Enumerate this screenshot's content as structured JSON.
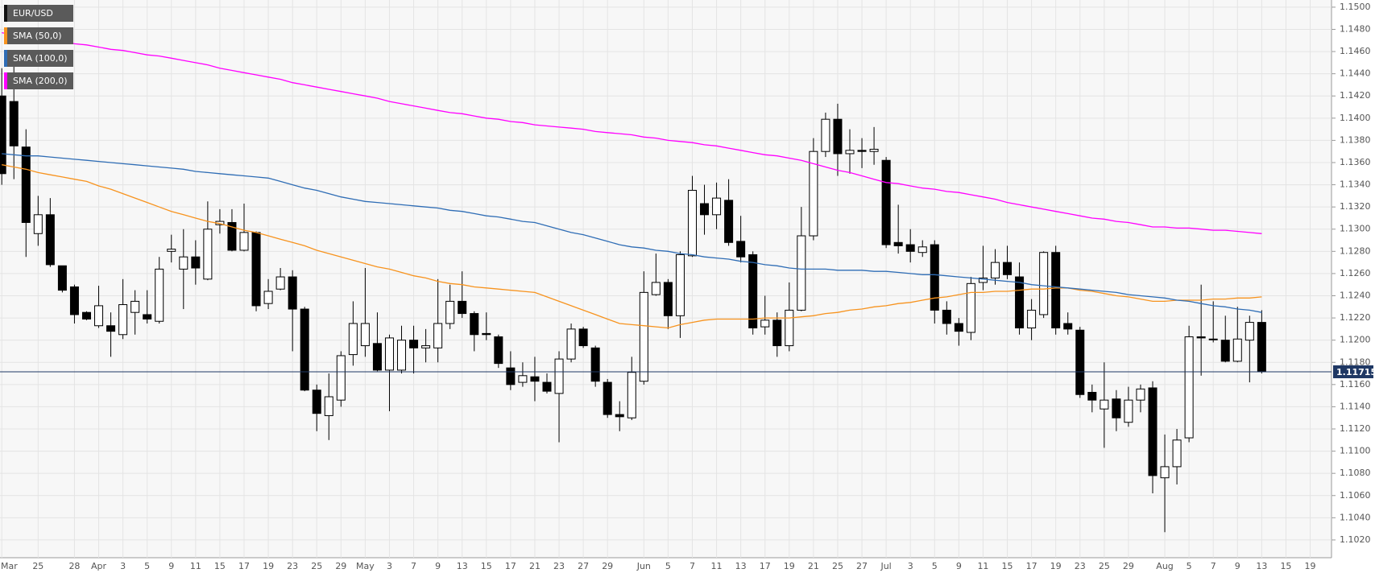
{
  "chart_data": {
    "type": "candlestick",
    "categories": [
      "Mar",
      null,
      null,
      "25",
      null,
      null,
      "28",
      null,
      "Apr",
      null,
      "3",
      null,
      "5",
      null,
      "9",
      null,
      "11",
      null,
      "15",
      null,
      "17",
      null,
      "19",
      null,
      "23",
      null,
      "25",
      null,
      "29",
      null,
      "May",
      null,
      "3",
      null,
      "7",
      null,
      "9",
      null,
      "13",
      null,
      "15",
      null,
      "17",
      null,
      "21",
      null,
      "23",
      null,
      "27",
      null,
      "29",
      null,
      null,
      "Jun",
      null,
      "5",
      null,
      "7",
      null,
      "11",
      null,
      "13",
      null,
      "17",
      null,
      "19",
      null,
      "21",
      null,
      "25",
      null,
      "27",
      null,
      "Jul",
      null,
      "3",
      null,
      "5",
      null,
      "9",
      null,
      "11",
      null,
      "15",
      null,
      "17",
      null,
      "19",
      null,
      "23",
      null,
      "25",
      null,
      "29",
      null,
      null,
      "Aug",
      null,
      "5",
      null,
      "7",
      null,
      "9",
      null,
      "13",
      null,
      "15",
      null,
      "19"
    ],
    "series": [
      {
        "name": "EUR/USD",
        "type": "candlestick",
        "color": "#000000",
        "up_color": "#ffffff",
        "down_color": "#000000",
        "open": [
          1.142,
          1.1415,
          1.1374,
          1.1296,
          1.1313,
          1.1267,
          1.1248,
          1.1225,
          1.1213,
          1.1213,
          1.1205,
          1.1225,
          1.1223,
          1.1217,
          1.128,
          1.1264,
          1.1275,
          1.1255,
          1.1304,
          1.1306,
          1.1281,
          1.1297,
          1.1233,
          1.1246,
          1.1257,
          1.1228,
          1.1155,
          1.1132,
          1.1146,
          1.1187,
          1.1195,
          1.1197,
          1.1173,
          1.1173,
          1.12,
          1.1193,
          1.1193,
          1.1215,
          1.1235,
          1.1224,
          1.1206,
          1.1203,
          1.1175,
          1.1162,
          1.1167,
          1.1162,
          1.1152,
          1.1183,
          1.121,
          1.1193,
          1.1162,
          1.1133,
          1.113,
          1.1163,
          1.1241,
          1.1252,
          1.1222,
          1.1276,
          1.1323,
          1.1313,
          1.1326,
          1.1289,
          1.1277,
          1.1212,
          1.1218,
          1.1195,
          1.1227,
          1.1294,
          1.137,
          1.1399,
          1.1368,
          1.1371,
          1.137,
          1.1362,
          1.1288,
          1.1286,
          1.1279,
          1.1286,
          1.1227,
          1.1215,
          1.1207,
          1.1252,
          1.1256,
          1.127,
          1.1257,
          1.1211,
          1.1223,
          1.1279,
          1.1215,
          1.1209,
          1.1153,
          1.1138,
          1.1147,
          1.1126,
          1.1146,
          1.1157,
          1.1076,
          1.1086,
          1.1112,
          1.1203,
          1.1201,
          1.12,
          1.1181,
          1.12,
          1.1216,
          null,
          null,
          null,
          null
        ],
        "high": [
          1.1445,
          1.145,
          1.139,
          1.133,
          1.1328,
          1.1267,
          1.125,
          1.1226,
          1.1249,
          1.1225,
          1.1255,
          1.1245,
          1.1245,
          1.1275,
          1.1295,
          1.13,
          1.129,
          1.1325,
          1.1318,
          1.1318,
          1.1323,
          1.1298,
          1.1255,
          1.1265,
          1.1263,
          1.123,
          1.116,
          1.117,
          1.119,
          1.1235,
          1.1265,
          1.1225,
          1.1205,
          1.1213,
          1.1213,
          1.121,
          1.1255,
          1.125,
          1.1262,
          1.1226,
          1.1225,
          1.1205,
          1.119,
          1.118,
          1.1185,
          1.117,
          1.119,
          1.1215,
          1.1212,
          1.1195,
          1.1165,
          1.1145,
          1.1185,
          1.1262,
          1.1278,
          1.1255,
          1.128,
          1.1348,
          1.134,
          1.1342,
          1.1345,
          1.1312,
          1.128,
          1.124,
          1.1225,
          1.1252,
          1.132,
          1.1382,
          1.1405,
          1.1413,
          1.139,
          1.1382,
          1.1392,
          1.1365,
          1.1322,
          1.13,
          1.129,
          1.129,
          1.1235,
          1.122,
          1.1257,
          1.1285,
          1.1282,
          1.1285,
          1.127,
          1.1237,
          1.128,
          1.1285,
          1.1225,
          1.1212,
          1.116,
          1.118,
          1.1155,
          1.1158,
          1.116,
          1.1163,
          1.1115,
          1.112,
          1.1213,
          1.125,
          1.1235,
          1.1222,
          1.123,
          1.1222,
          1.1227,
          null,
          null,
          null,
          null
        ],
        "low": [
          1.134,
          1.1345,
          1.1275,
          1.1285,
          1.1266,
          1.1243,
          1.1215,
          1.1218,
          1.1211,
          1.1185,
          1.1201,
          1.1205,
          1.1215,
          1.1215,
          1.127,
          1.1228,
          1.125,
          1.1254,
          1.1296,
          1.128,
          1.128,
          1.1226,
          1.1228,
          1.1245,
          1.119,
          1.1154,
          1.1118,
          1.111,
          1.114,
          1.1177,
          1.1185,
          1.1172,
          1.1136,
          1.117,
          1.117,
          1.118,
          1.118,
          1.121,
          1.122,
          1.119,
          1.12,
          1.1175,
          1.1155,
          1.1158,
          1.1145,
          1.1152,
          1.1108,
          1.118,
          1.1193,
          1.1158,
          1.113,
          1.1118,
          1.1128,
          1.116,
          1.124,
          1.121,
          1.1202,
          1.1275,
          1.1295,
          1.13,
          1.1285,
          1.127,
          1.1205,
          1.1205,
          1.1185,
          1.119,
          1.1226,
          1.129,
          1.1365,
          1.1348,
          1.135,
          1.1355,
          1.1358,
          1.1283,
          1.1278,
          1.127,
          1.1275,
          1.1215,
          1.1205,
          1.1195,
          1.12,
          1.1245,
          1.125,
          1.1255,
          1.1205,
          1.12,
          1.122,
          1.1205,
          1.1205,
          1.1148,
          1.1135,
          1.1103,
          1.1118,
          1.1122,
          1.1135,
          1.1062,
          1.1027,
          1.107,
          1.1108,
          1.1168,
          1.1198,
          1.118,
          1.118,
          1.1162,
          1.117,
          null,
          null,
          null,
          null
        ],
        "close": [
          1.135,
          1.1375,
          1.1306,
          1.1313,
          1.1268,
          1.1245,
          1.1223,
          1.1219,
          1.1231,
          1.1208,
          1.1232,
          1.1235,
          1.1219,
          1.1264,
          1.1282,
          1.1275,
          1.1265,
          1.13,
          1.1307,
          1.1281,
          1.1297,
          1.1231,
          1.1244,
          1.1257,
          1.1228,
          1.1155,
          1.1134,
          1.1149,
          1.1186,
          1.1215,
          1.1215,
          1.1173,
          1.1202,
          1.12,
          1.1193,
          1.1195,
          1.1215,
          1.1235,
          1.1224,
          1.1205,
          1.1205,
          1.1179,
          1.116,
          1.1168,
          1.1163,
          1.1154,
          1.1183,
          1.121,
          1.1195,
          1.1163,
          1.1133,
          1.1131,
          1.1171,
          1.1243,
          1.1252,
          1.1222,
          1.1277,
          1.1335,
          1.1313,
          1.1328,
          1.1288,
          1.1275,
          1.1211,
          1.1218,
          1.1195,
          1.1227,
          1.1294,
          1.137,
          1.1399,
          1.1368,
          1.1371,
          1.137,
          1.1372,
          1.1286,
          1.1285,
          1.128,
          1.1284,
          1.1227,
          1.1215,
          1.1208,
          1.1251,
          1.1256,
          1.127,
          1.1259,
          1.1211,
          1.1227,
          1.1279,
          1.1211,
          1.121,
          1.1151,
          1.1146,
          1.1146,
          1.113,
          1.1146,
          1.1156,
          1.1078,
          1.1086,
          1.111,
          1.1203,
          1.1202,
          1.1201,
          1.1181,
          1.1201,
          1.1216,
          1.11715,
          null,
          null,
          null,
          null
        ]
      },
      {
        "name": "SMA (50,0)",
        "type": "line",
        "color": "#f7931e",
        "values": [
          1.1358,
          1.1356,
          1.1354,
          1.1351,
          1.1349,
          1.1347,
          1.1345,
          1.1343,
          1.1339,
          1.1336,
          1.1332,
          1.1328,
          1.1324,
          1.132,
          1.1316,
          1.1313,
          1.131,
          1.1307,
          1.1305,
          1.1302,
          1.1299,
          1.1297,
          1.1294,
          1.1291,
          1.1288,
          1.1285,
          1.1281,
          1.1278,
          1.1275,
          1.1272,
          1.1269,
          1.1266,
          1.1264,
          1.1261,
          1.1258,
          1.1256,
          1.1253,
          1.1251,
          1.125,
          1.1248,
          1.1247,
          1.1246,
          1.1245,
          1.1244,
          1.1243,
          1.1239,
          1.1235,
          1.1231,
          1.1227,
          1.1223,
          1.1219,
          1.1215,
          1.1214,
          1.1213,
          1.1212,
          1.1211,
          1.1214,
          1.1216,
          1.1218,
          1.1219,
          1.1219,
          1.1219,
          1.1219,
          1.122,
          1.122,
          1.122,
          1.1221,
          1.1222,
          1.1224,
          1.1225,
          1.1227,
          1.1228,
          1.123,
          1.1231,
          1.1233,
          1.1234,
          1.1236,
          1.1238,
          1.1239,
          1.1241,
          1.1243,
          1.1243,
          1.1244,
          1.1244,
          1.1245,
          1.1246,
          1.1246,
          1.1247,
          1.1247,
          1.1245,
          1.1244,
          1.1242,
          1.124,
          1.1239,
          1.1237,
          1.1235,
          1.1235,
          1.1236,
          1.1236,
          1.1236,
          1.1237,
          1.1237,
          1.1238,
          1.1238,
          1.1239,
          null,
          null,
          null,
          null
        ]
      },
      {
        "name": "SMA (100,0)",
        "type": "line",
        "color": "#2f6db5",
        "values": [
          1.1368,
          1.1367,
          1.1366,
          1.1366,
          1.1365,
          1.1364,
          1.1363,
          1.1362,
          1.1361,
          1.136,
          1.1359,
          1.1358,
          1.1357,
          1.1356,
          1.1355,
          1.1354,
          1.1352,
          1.1351,
          1.135,
          1.1349,
          1.1348,
          1.1347,
          1.1346,
          1.1343,
          1.134,
          1.1337,
          1.1335,
          1.1332,
          1.1329,
          1.1327,
          1.1325,
          1.1324,
          1.1323,
          1.1322,
          1.1321,
          1.132,
          1.1319,
          1.1317,
          1.1316,
          1.1314,
          1.1312,
          1.1311,
          1.1309,
          1.1307,
          1.1306,
          1.1303,
          1.13,
          1.1297,
          1.1295,
          1.1292,
          1.1289,
          1.1286,
          1.1284,
          1.1283,
          1.1281,
          1.128,
          1.1278,
          1.1277,
          1.1275,
          1.1274,
          1.1273,
          1.1271,
          1.127,
          1.1268,
          1.1267,
          1.1265,
          1.1264,
          1.1264,
          1.1264,
          1.1263,
          1.1263,
          1.1263,
          1.1262,
          1.1262,
          1.1261,
          1.126,
          1.1259,
          1.1259,
          1.1258,
          1.1257,
          1.1256,
          1.1255,
          1.1254,
          1.1253,
          1.1252,
          1.125,
          1.1249,
          1.1248,
          1.1247,
          1.1246,
          1.1245,
          1.1244,
          1.1243,
          1.1241,
          1.124,
          1.1239,
          1.1238,
          1.1236,
          1.1235,
          1.1233,
          1.1231,
          1.123,
          1.1228,
          1.1227,
          1.1225,
          null,
          null,
          null,
          null
        ]
      },
      {
        "name": "SMA (200,0)",
        "type": "line",
        "color": "#ff00ff",
        "values": [
          1.1477,
          1.1475,
          1.1474,
          1.1472,
          1.147,
          1.1469,
          1.1467,
          1.1466,
          1.1464,
          1.1462,
          1.1461,
          1.1459,
          1.1457,
          1.1456,
          1.1454,
          1.1452,
          1.145,
          1.1448,
          1.1445,
          1.1443,
          1.1441,
          1.1439,
          1.1437,
          1.1435,
          1.1432,
          1.143,
          1.1428,
          1.1426,
          1.1424,
          1.1422,
          1.142,
          1.1418,
          1.1415,
          1.1413,
          1.1411,
          1.1409,
          1.1407,
          1.1405,
          1.1404,
          1.1402,
          1.14,
          1.1399,
          1.1397,
          1.1396,
          1.1394,
          1.1393,
          1.1392,
          1.1391,
          1.139,
          1.1388,
          1.1387,
          1.1386,
          1.1385,
          1.1383,
          1.1382,
          1.138,
          1.1379,
          1.1378,
          1.1376,
          1.1375,
          1.1373,
          1.1371,
          1.1369,
          1.1367,
          1.1366,
          1.1364,
          1.1362,
          1.1359,
          1.1356,
          1.1353,
          1.1351,
          1.1348,
          1.1345,
          1.1342,
          1.1341,
          1.1339,
          1.1337,
          1.1336,
          1.1334,
          1.1333,
          1.1331,
          1.1329,
          1.1327,
          1.1324,
          1.1322,
          1.132,
          1.1318,
          1.1316,
          1.1314,
          1.1312,
          1.131,
          1.1309,
          1.1307,
          1.1306,
          1.1304,
          1.1302,
          1.1302,
          1.1301,
          1.1301,
          1.13,
          1.1299,
          1.1299,
          1.1298,
          1.1297,
          1.1296,
          null,
          null,
          null,
          null
        ]
      }
    ],
    "last_price": 1.11715,
    "last_price_color": "#1f3864",
    "ylim": [
      1.1004,
      1.1505
    ],
    "yticks": [
      {
        "value": 1.102,
        "label": "1.1020"
      },
      {
        "value": 1.104,
        "label": "1.1040"
      },
      {
        "value": 1.106,
        "label": "1.1060"
      },
      {
        "value": 1.108,
        "label": "1.1080"
      },
      {
        "value": 1.11,
        "label": "1.1100"
      },
      {
        "value": 1.112,
        "label": "1.1120"
      },
      {
        "value": 1.114,
        "label": "1.1140"
      },
      {
        "value": 1.116,
        "label": "1.1160"
      },
      {
        "value": 1.118,
        "label": "1.1180"
      },
      {
        "value": 1.12,
        "label": "1.1200"
      },
      {
        "value": 1.122,
        "label": "1.1220"
      },
      {
        "value": 1.124,
        "label": "1.1240"
      },
      {
        "value": 1.126,
        "label": "1.1260"
      },
      {
        "value": 1.128,
        "label": "1.1280"
      },
      {
        "value": 1.13,
        "label": "1.1300"
      },
      {
        "value": 1.132,
        "label": "1.1320"
      },
      {
        "value": 1.134,
        "label": "1.1340"
      },
      {
        "value": 1.136,
        "label": "1.1360"
      },
      {
        "value": 1.138,
        "label": "1.1380"
      },
      {
        "value": 1.14,
        "label": "1.1400"
      },
      {
        "value": 1.142,
        "label": "1.1420"
      },
      {
        "value": 1.144,
        "label": "1.1440"
      },
      {
        "value": 1.146,
        "label": "1.1460"
      },
      {
        "value": 1.148,
        "label": "1.1480"
      },
      {
        "value": 1.15,
        "label": "1.1500"
      }
    ],
    "grid": true,
    "legend": "top-left"
  }
}
